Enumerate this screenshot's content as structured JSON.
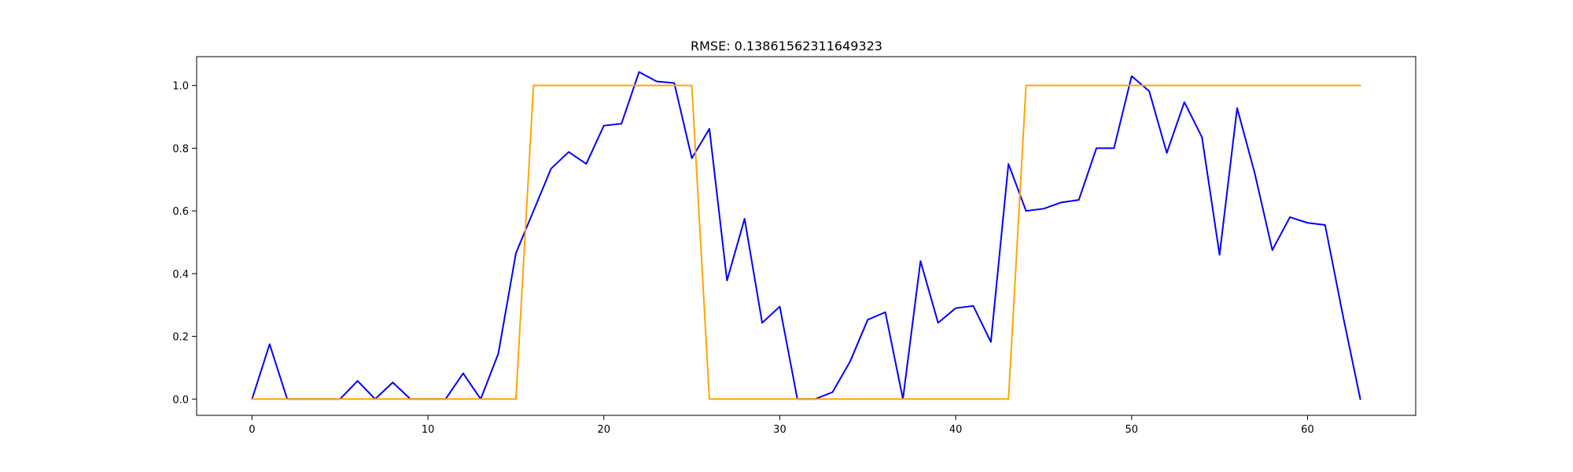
{
  "chart_data": {
    "type": "line",
    "title": "RMSE: 0.13861562311649323",
    "xlabel": "",
    "ylabel": "",
    "xlim": [
      -3.15,
      66.15
    ],
    "ylim": [
      -0.052,
      1.092
    ],
    "xticks": [
      0,
      10,
      20,
      30,
      40,
      50,
      60
    ],
    "yticks": [
      0.0,
      0.2,
      0.4,
      0.6,
      0.8,
      1.0
    ],
    "grid": false,
    "legend": "none",
    "x": [
      0,
      1,
      2,
      3,
      4,
      5,
      6,
      7,
      8,
      9,
      10,
      11,
      12,
      13,
      14,
      15,
      16,
      17,
      18,
      19,
      20,
      21,
      22,
      23,
      24,
      25,
      26,
      27,
      28,
      29,
      30,
      31,
      32,
      33,
      34,
      35,
      36,
      37,
      38,
      39,
      40,
      41,
      42,
      43,
      44,
      45,
      46,
      47,
      48,
      49,
      50,
      51,
      52,
      53,
      54,
      55,
      56,
      57,
      58,
      59,
      60,
      61,
      62,
      63
    ],
    "series": [
      {
        "color": "#0000ff",
        "values": [
          0.0,
          0.175,
          0.0,
          0.0,
          0.0,
          0.0,
          0.058,
          0.0,
          0.053,
          0.0,
          0.0,
          0.0,
          0.082,
          0.0,
          0.145,
          0.465,
          0.6,
          0.735,
          0.788,
          0.75,
          0.872,
          0.878,
          1.043,
          1.013,
          1.008,
          0.768,
          0.862,
          0.378,
          0.575,
          0.243,
          0.295,
          0.0,
          0.0,
          0.022,
          0.12,
          0.253,
          0.277,
          0.0,
          0.44,
          0.243,
          0.29,
          0.297,
          0.182,
          0.75,
          0.6,
          0.607,
          0.627,
          0.635,
          0.8,
          0.8,
          1.03,
          0.982,
          0.785,
          0.947,
          0.835,
          0.46,
          0.928,
          0.72,
          0.475,
          0.58,
          0.562,
          0.555,
          0.27,
          0.0
        ]
      },
      {
        "color": "#ffa500",
        "values": [
          0,
          0,
          0,
          0,
          0,
          0,
          0,
          0,
          0,
          0,
          0,
          0,
          0,
          0,
          0,
          0,
          1,
          1,
          1,
          1,
          1,
          1,
          1,
          1,
          1,
          1,
          0,
          0,
          0,
          0,
          0,
          0,
          0,
          0,
          0,
          0,
          0,
          0,
          0,
          0,
          0,
          0,
          0,
          0,
          1,
          1,
          1,
          1,
          1,
          1,
          1,
          1,
          1,
          1,
          1,
          1,
          1,
          1,
          1,
          1,
          1,
          1,
          1,
          1
        ]
      }
    ]
  }
}
